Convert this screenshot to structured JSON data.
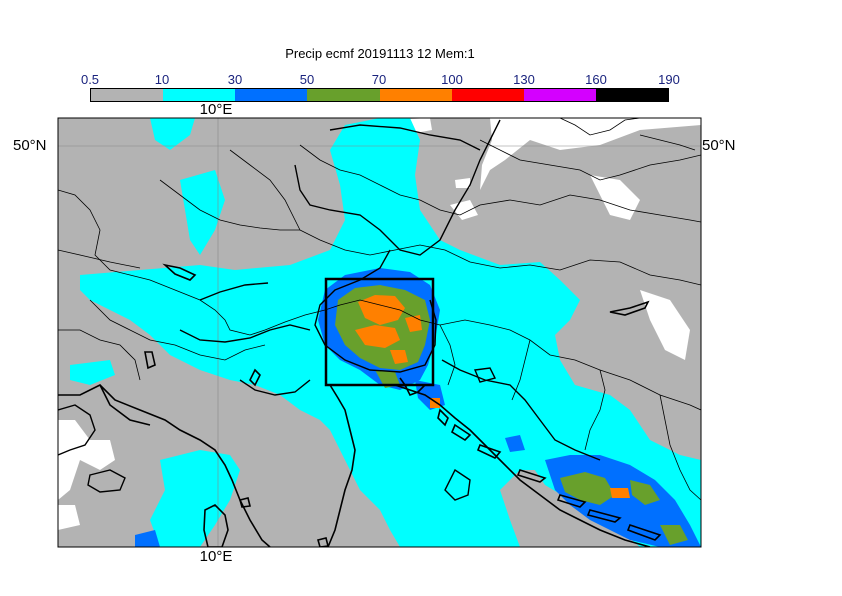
{
  "title": "Precip ecmf 20191113 12 Mem:1",
  "colorbar": {
    "labels": [
      "0.5",
      "10",
      "30",
      "50",
      "70",
      "100",
      "130",
      "160",
      "190"
    ],
    "colors": [
      "#b3b3b3",
      "#00ffff",
      "#0070ff",
      "#68a02c",
      "#ff8000",
      "#ff0000",
      "#d400ff",
      "#000000"
    ]
  },
  "axes": {
    "lon_top": "10°E",
    "lon_bottom": "10°E",
    "lat_left": "50°N",
    "lat_right": "50°N"
  },
  "colors": {
    "land_gray": "#b3b3b3",
    "precip_cyan": "#00ffff",
    "precip_blue": "#0070ff",
    "precip_green": "#68a02c",
    "precip_orange": "#ff8000",
    "no_data_white": "#ffffff"
  }
}
